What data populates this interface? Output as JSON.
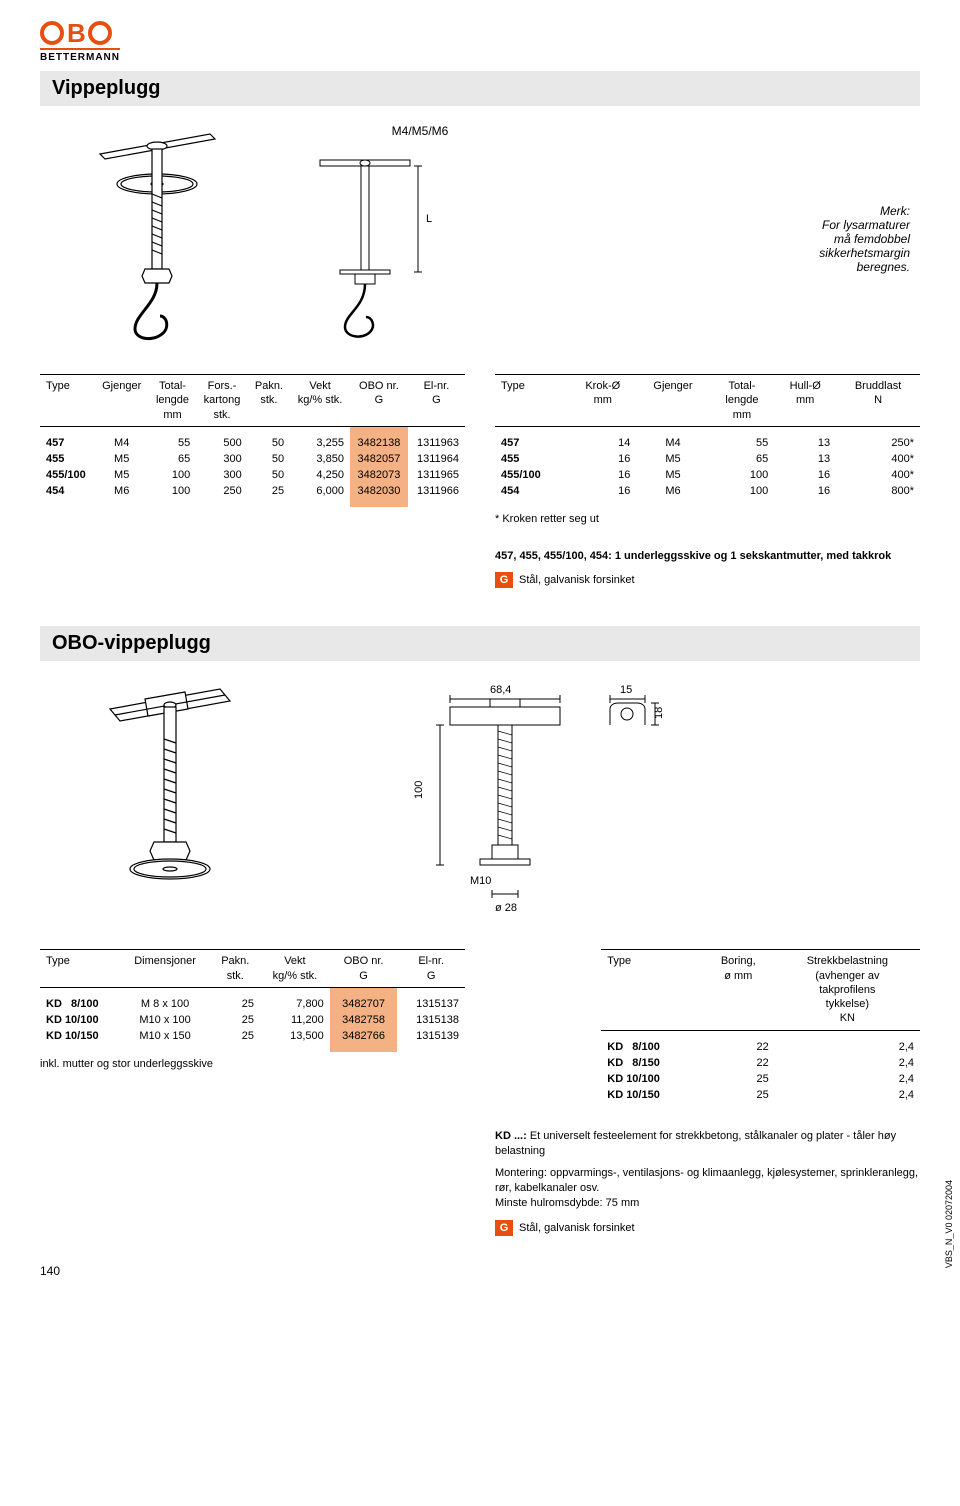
{
  "logo": {
    "brand": "OBO",
    "sub": "BETTERMANN"
  },
  "section1": {
    "title": "Vippeplugg",
    "dimlabel": "M4/M5/M6",
    "note_right": "Merk:\nFor lysarmaturer\nmå femdobbel\nsikkerhetsmargin\nberegnes.",
    "left_table": {
      "headers": [
        "Type",
        "Gjenger",
        "Total-\nlengde\nmm",
        "Fors.-\nkartong\nstk.",
        "Pakn.\nstk.",
        "Vekt\nkg/% stk.",
        "OBO nr.\nG",
        "El-nr.\nG"
      ],
      "rows": [
        [
          "457",
          "M4",
          "55",
          "500",
          "50",
          "3,255",
          "3482138",
          "1311963"
        ],
        [
          "455",
          "M5",
          "65",
          "300",
          "50",
          "3,850",
          "3482057",
          "1311964"
        ],
        [
          "455/100",
          "M5",
          "100",
          "300",
          "50",
          "4,250",
          "3482073",
          "1311965"
        ],
        [
          "454",
          "M6",
          "100",
          "250",
          "25",
          "6,000",
          "3482030",
          "1311966"
        ]
      ]
    },
    "right_table": {
      "headers": [
        "Type",
        "Krok-Ø\nmm",
        "Gjenger",
        "Total-\nlengde\nmm",
        "Hull-Ø\nmm",
        "Bruddlast\nN"
      ],
      "rows": [
        [
          "457",
          "14",
          "M4",
          "55",
          "13",
          "250*"
        ],
        [
          "455",
          "16",
          "M5",
          "65",
          "13",
          "400*"
        ],
        [
          "455/100",
          "16",
          "M5",
          "100",
          "16",
          "400*"
        ],
        [
          "454",
          "16",
          "M6",
          "100",
          "16",
          "800*"
        ]
      ]
    },
    "star_note": "* Kroken retter seg ut",
    "desc": "457, 455, 455/100, 454: 1 underleggsskive og 1 sekskantmutter, med takkrok",
    "material": "Stål, galvanisk forsinket"
  },
  "section2": {
    "title": "OBO-vippeplugg",
    "dims": {
      "a": "68,4",
      "b": "15",
      "c": "18",
      "d": "100",
      "e": "M10",
      "f": "ø 28"
    },
    "left_table": {
      "headers": [
        "Type",
        "Dimensjoner",
        "Pakn.\nstk.",
        "Vekt\nkg/% stk.",
        "OBO nr.\nG",
        "El-nr.\nG"
      ],
      "rows": [
        [
          "KD   8/100",
          "M  8 x 100",
          "25",
          "7,800",
          "3482707",
          "1315137"
        ],
        [
          "KD 10/100",
          "M10 x 100",
          "25",
          "11,200",
          "3482758",
          "1315138"
        ],
        [
          "KD 10/150",
          "M10 x 150",
          "25",
          "13,500",
          "3482766",
          "1315139"
        ]
      ]
    },
    "incl_note": "inkl. mutter og stor underleggsskive",
    "right_table": {
      "headers": [
        "Type",
        "Boring,\nø mm",
        "Strekkbelastning\n(avhenger av\ntakprofilens\ntykkelse)\nKN"
      ],
      "rows": [
        [
          "KD   8/100",
          "22",
          "2,4"
        ],
        [
          "KD   8/150",
          "22",
          "2,4"
        ],
        [
          "KD 10/100",
          "25",
          "2,4"
        ],
        [
          "KD 10/150",
          "25",
          "2,4"
        ]
      ]
    },
    "desc1_b": "KD ...:",
    "desc1": " Et universelt festeelement for strekkbetong, stålkanaler og plater - tåler høy belastning",
    "desc2": "Montering: oppvarmings-, ventilasjons- og klimaanlegg, kjølesystemer, sprinkleranlegg, rør, kabelkanaler osv.\nMinste hulromsdybde: 75 mm",
    "material": "Stål, galvanisk forsinket"
  },
  "page_number": "140",
  "side_code": "VBS_N_V0  02072004"
}
